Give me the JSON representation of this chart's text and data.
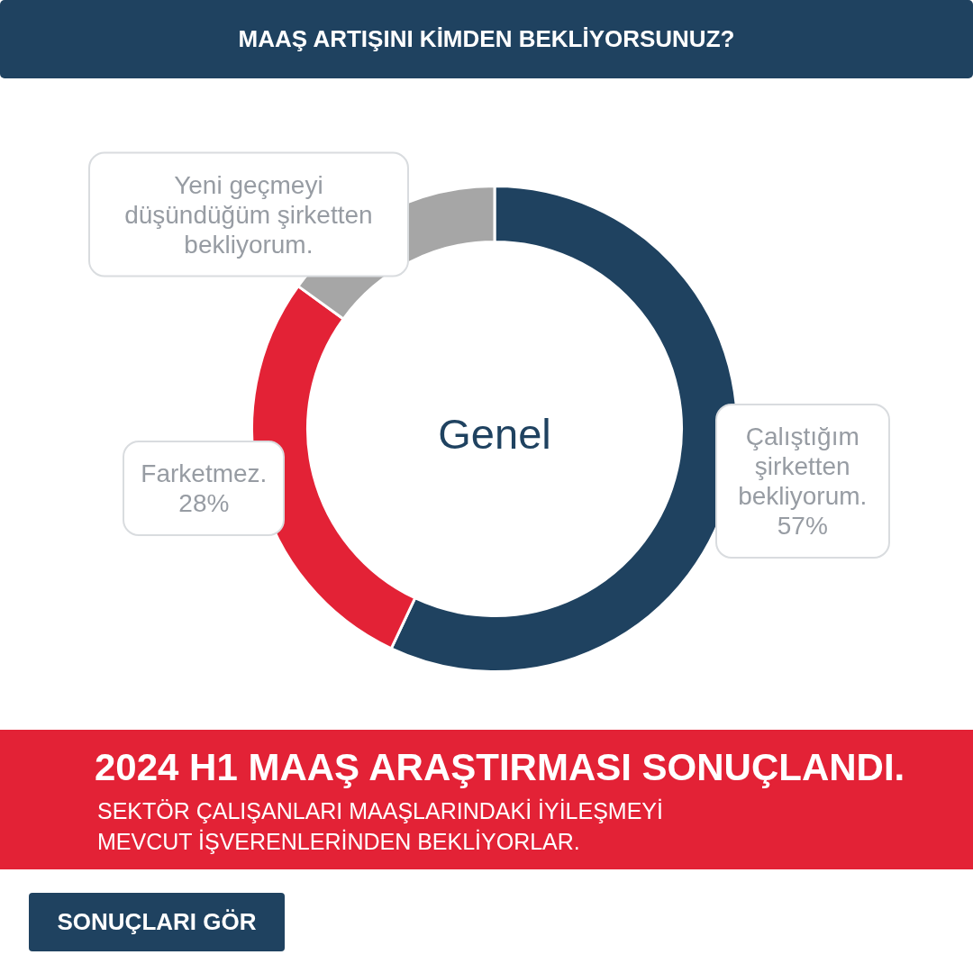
{
  "chart_data": {
    "type": "donut",
    "title": "MAAŞ ARTIŞINI KİMDEN BEKLİYORSUNUZ?",
    "categories": [
      "Çalıştığım şirketten bekliyorum.",
      "Farketmez.",
      "Yeni geçmeyi düşündüğüm şirketten bekliyorum."
    ],
    "values": [
      57,
      28,
      15
    ],
    "colors": [
      "#1f4260",
      "#e32236",
      "#a6a6a6"
    ],
    "value_labels": [
      "57%",
      "28%",
      null
    ],
    "annotations": [
      "Genel",
      "2024 H1 MAAŞ ARAŞTIRMASI SONUÇLANDI.",
      "SEKTÖR ÇALIŞANLARI MAAŞLARINDAKİ İYİLEŞMEYİ MEVCUT İŞVERENLERİNDEN BEKLİYORLAR.",
      "SONUÇLARI GÖR"
    ]
  }
}
